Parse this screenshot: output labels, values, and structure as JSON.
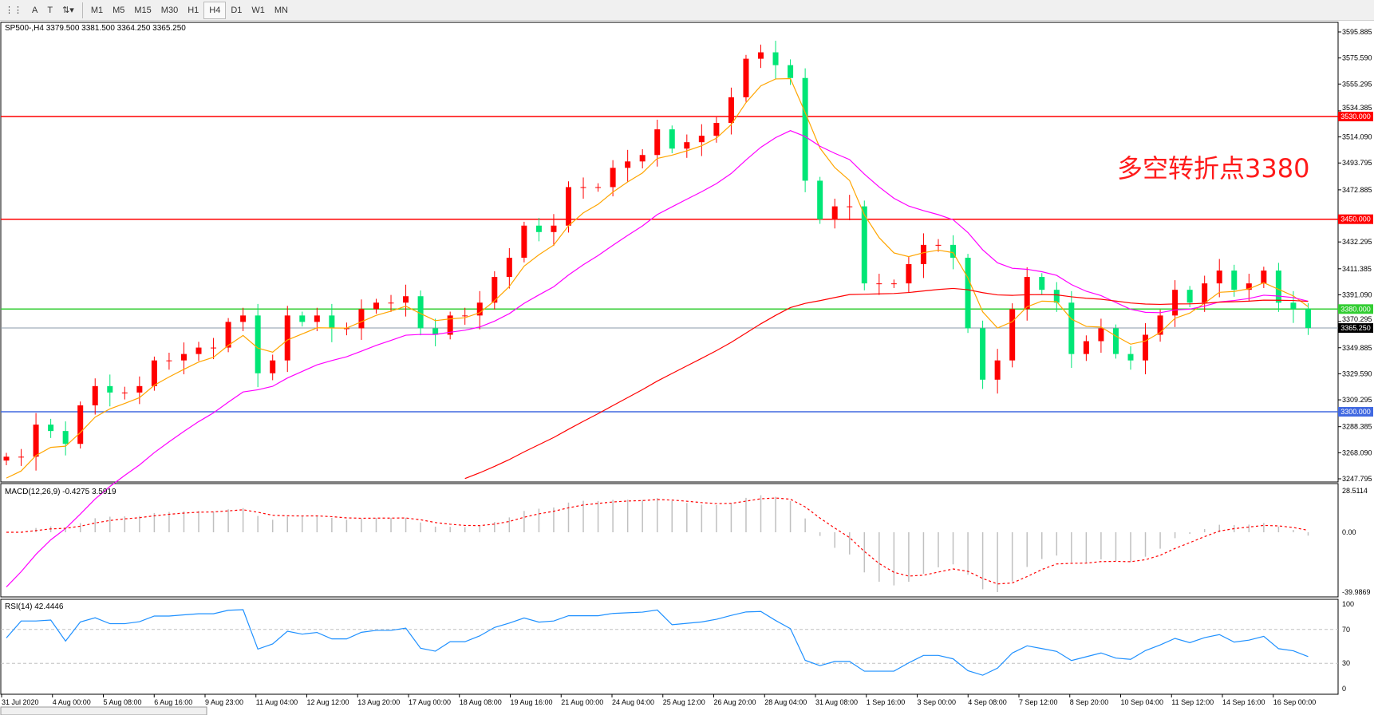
{
  "toolbar": {
    "tools": [
      "crosshair-icon",
      "text-A",
      "text-T",
      "arrows-icon"
    ],
    "timeframes": [
      "M1",
      "M5",
      "M15",
      "M30",
      "H1",
      "H4",
      "D1",
      "W1",
      "MN"
    ],
    "selected": "H4"
  },
  "chart_title": "SP500-,H4  3379.500 3381.500 3364.250 3365.250",
  "annotation": "多空转折点3380",
  "price_axis": [
    "3595.885",
    "3575.590",
    "3555.295",
    "3534.385",
    "3514.090",
    "3493.795",
    "3472.885",
    "3432.295",
    "3411.385",
    "3391.090",
    "3370.295",
    "3349.885",
    "3329.590",
    "3309.295",
    "3288.385",
    "3268.090",
    "3247.795"
  ],
  "levels": [
    {
      "price": 3530,
      "label": "3530.000",
      "color": "#ff0000"
    },
    {
      "price": 3450,
      "label": "3450.000",
      "color": "#ff0000"
    },
    {
      "price": 3380,
      "label": "3380.000",
      "color": "#32cd32"
    },
    {
      "price": 3365.25,
      "label": "3365.250",
      "color": "#000000"
    },
    {
      "price": 3300,
      "label": "3300.000",
      "color": "#4169e1"
    }
  ],
  "macd": {
    "title": "MACD(12,26,9) -0.4275 3.5919",
    "axis": [
      "28.5114",
      "0.00",
      "-39.9869"
    ]
  },
  "rsi": {
    "title": "RSI(14) 42.4446",
    "axis": [
      "100",
      "70",
      "30",
      "0"
    ]
  },
  "time_axis": [
    "31 Jul 2020",
    "4 Aug 00:00",
    "5 Aug 08:00",
    "6 Aug 16:00",
    "9 Aug 23:00",
    "11 Aug 04:00",
    "12 Aug 12:00",
    "13 Aug 20:00",
    "17 Aug 00:00",
    "18 Aug 08:00",
    "19 Aug 16:00",
    "21 Aug 00:00",
    "24 Aug 04:00",
    "25 Aug 12:00",
    "26 Aug 20:00",
    "28 Aug 04:00",
    "31 Aug 08:00",
    "1 Sep 16:00",
    "3 Sep 00:00",
    "4 Sep 08:00",
    "7 Sep 12:00",
    "8 Sep 20:00",
    "10 Sep 04:00",
    "11 Sep 12:00",
    "14 Sep 16:00",
    "16 Sep 00:00"
  ],
  "chart_data": {
    "type": "candlestick",
    "symbol": "SP500-",
    "timeframe": "H4",
    "ylim": [
      3247.795,
      3595.885
    ],
    "colors": {
      "up": "#ff0000",
      "down": "#00e676",
      "ma_fast": "#ffa500",
      "ma_mid": "#ff00ff",
      "ma_slow": "#ff0000",
      "rsi": "#1e90ff",
      "macd_signal": "#ff0000",
      "macd_hist": "#c0c0c0"
    },
    "closes": [
      3265,
      3265,
      3290,
      3285,
      3275,
      3305,
      3320,
      3315,
      3315,
      3320,
      3340,
      3340,
      3345,
      3350,
      3350,
      3370,
      3375,
      3330,
      3340,
      3375,
      3370,
      3375,
      3365,
      3365,
      3380,
      3385,
      3385,
      3390,
      3365,
      3360,
      3375,
      3375,
      3385,
      3405,
      3420,
      3445,
      3440,
      3445,
      3475,
      3475,
      3475,
      3490,
      3495,
      3500,
      3520,
      3505,
      3510,
      3515,
      3525,
      3545,
      3575,
      3580,
      3570,
      3560,
      3480,
      3450,
      3460,
      3460,
      3400,
      3400,
      3400,
      3415,
      3430,
      3430,
      3420,
      3365,
      3325,
      3340,
      3380,
      3405,
      3395,
      3385,
      3345,
      3355,
      3365,
      3345,
      3340,
      3360,
      3375,
      3395,
      3385,
      3400,
      3410,
      3395,
      3400,
      3410,
      3385,
      3380,
      3365.25
    ]
  }
}
